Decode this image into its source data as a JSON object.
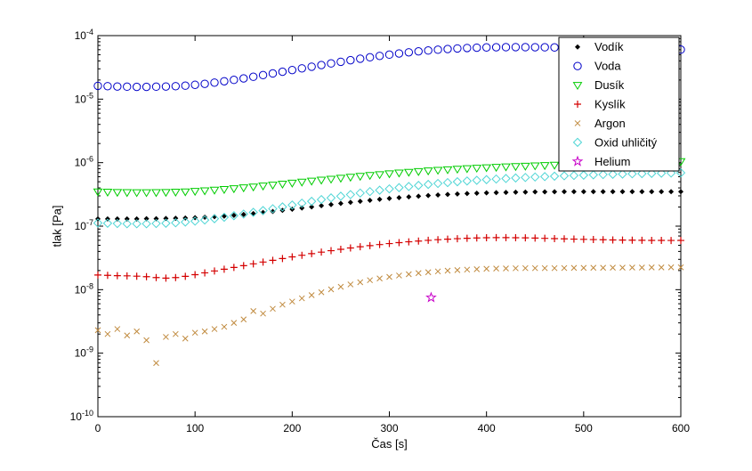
{
  "chart_data": {
    "type": "scatter",
    "title": "",
    "xlabel": "Čas [s]",
    "ylabel": "tlak [Pa]",
    "xlim": [
      0,
      600
    ],
    "ylim_log10": [
      -10,
      -4
    ],
    "x_ticks": [
      0,
      100,
      200,
      300,
      400,
      500,
      600
    ],
    "y_tick_base": "10",
    "y_tick_exponents": [
      -10,
      -9,
      -8,
      -7,
      -6,
      -5,
      -4
    ],
    "grid": false,
    "legend_position": "top-right",
    "x": [
      0,
      10,
      20,
      30,
      40,
      50,
      60,
      70,
      80,
      90,
      100,
      110,
      120,
      130,
      140,
      150,
      160,
      170,
      180,
      190,
      200,
      210,
      220,
      230,
      240,
      250,
      260,
      270,
      280,
      290,
      300,
      310,
      320,
      330,
      340,
      350,
      360,
      370,
      380,
      390,
      400,
      410,
      420,
      430,
      440,
      450,
      460,
      470,
      480,
      490,
      500,
      510,
      520,
      530,
      540,
      550,
      560,
      570,
      580,
      590,
      600
    ],
    "series": [
      {
        "id": "vodik",
        "label": "Vodík",
        "marker": "diamond-filled",
        "color": "#000000",
        "scale": 1e-07,
        "values": [
          1.3,
          1.3,
          1.3,
          1.3,
          1.3,
          1.31,
          1.31,
          1.32,
          1.33,
          1.34,
          1.36,
          1.38,
          1.41,
          1.44,
          1.48,
          1.53,
          1.58,
          1.64,
          1.7,
          1.77,
          1.85,
          1.93,
          2.01,
          2.1,
          2.19,
          2.28,
          2.37,
          2.46,
          2.55,
          2.64,
          2.73,
          2.81,
          2.89,
          2.96,
          3.03,
          3.1,
          3.16,
          3.21,
          3.26,
          3.3,
          3.34,
          3.37,
          3.4,
          3.42,
          3.44,
          3.46,
          3.47,
          3.48,
          3.49,
          3.5,
          3.5,
          3.5,
          3.5,
          3.5,
          3.5,
          3.5,
          3.5,
          3.5,
          3.5,
          3.5,
          3.5
        ]
      },
      {
        "id": "voda",
        "label": "Voda",
        "marker": "circle",
        "color": "#0000c8",
        "scale": 1e-05,
        "values": [
          1.62,
          1.6,
          1.58,
          1.57,
          1.56,
          1.56,
          1.57,
          1.58,
          1.6,
          1.63,
          1.68,
          1.74,
          1.82,
          1.91,
          2.01,
          2.12,
          2.25,
          2.39,
          2.54,
          2.7,
          2.87,
          3.05,
          3.24,
          3.44,
          3.65,
          3.87,
          4.1,
          4.33,
          4.56,
          4.79,
          5.02,
          5.24,
          5.45,
          5.65,
          5.83,
          6.0,
          6.15,
          6.28,
          6.38,
          6.46,
          6.52,
          6.56,
          6.58,
          6.59,
          6.58,
          6.57,
          6.55,
          6.52,
          6.49,
          6.45,
          6.41,
          6.37,
          6.33,
          6.29,
          6.25,
          6.21,
          6.17,
          6.13,
          6.09,
          6.05,
          6.02
        ]
      },
      {
        "id": "dusik",
        "label": "Dusík",
        "marker": "triangle-down",
        "color": "#00cc00",
        "scale": 1e-07,
        "values": [
          3.5,
          3.46,
          3.43,
          3.41,
          3.4,
          3.4,
          3.41,
          3.43,
          3.46,
          3.5,
          3.56,
          3.63,
          3.72,
          3.82,
          3.93,
          4.05,
          4.18,
          4.32,
          4.47,
          4.63,
          4.8,
          4.98,
          5.16,
          5.35,
          5.54,
          5.74,
          5.94,
          6.14,
          6.34,
          6.54,
          6.74,
          6.93,
          7.12,
          7.3,
          7.48,
          7.65,
          7.81,
          7.97,
          8.12,
          8.26,
          8.4,
          8.53,
          8.65,
          8.77,
          8.88,
          8.99,
          9.09,
          9.19,
          9.29,
          9.38,
          9.47,
          9.56,
          9.65,
          9.74,
          9.83,
          9.92,
          10.0,
          10.1,
          10.2,
          10.3,
          10.45
        ]
      },
      {
        "id": "kyslik",
        "label": "Kyslík",
        "marker": "plus",
        "color": "#d40000",
        "scale": 1e-08,
        "values": [
          1.7,
          1.68,
          1.66,
          1.65,
          1.63,
          1.6,
          1.55,
          1.52,
          1.55,
          1.62,
          1.72,
          1.84,
          1.97,
          2.1,
          2.24,
          2.39,
          2.55,
          2.72,
          2.9,
          3.09,
          3.28,
          3.48,
          3.69,
          3.9,
          4.11,
          4.32,
          4.53,
          4.74,
          4.94,
          5.13,
          5.32,
          5.5,
          5.67,
          5.83,
          5.98,
          6.12,
          6.24,
          6.35,
          6.44,
          6.52,
          6.57,
          6.6,
          6.6,
          6.58,
          6.54,
          6.49,
          6.43,
          6.37,
          6.31,
          6.25,
          6.2,
          6.15,
          6.11,
          6.07,
          6.04,
          6.01,
          5.99,
          5.97,
          5.96,
          5.95,
          5.95
        ]
      },
      {
        "id": "argon",
        "label": "Argon",
        "marker": "x",
        "color": "#c08a3e",
        "scale": 1e-09,
        "values": [
          2.3,
          2.0,
          2.4,
          1.9,
          2.2,
          1.6,
          0.7,
          1.8,
          2.0,
          1.7,
          2.1,
          2.2,
          2.4,
          2.6,
          3.0,
          3.4,
          4.6,
          4.2,
          5.0,
          5.8,
          6.5,
          7.3,
          8.2,
          9.1,
          10.1,
          11.1,
          12.1,
          13.1,
          14.1,
          15.0,
          15.9,
          16.7,
          17.5,
          18.2,
          18.8,
          19.4,
          19.9,
          20.3,
          20.7,
          21.0,
          21.3,
          21.5,
          21.6,
          21.7,
          21.8,
          21.8,
          21.8,
          21.8,
          21.9,
          22.0,
          22.0,
          22.1,
          22.1,
          22.2,
          22.2,
          22.3,
          22.3,
          22.4,
          22.4,
          22.5,
          22.5
        ]
      },
      {
        "id": "oxid-uhlicity",
        "label": "Oxid uhličitý",
        "marker": "diamond",
        "color": "#4fd5d5",
        "scale": 1e-07,
        "values": [
          1.12,
          1.11,
          1.1,
          1.09,
          1.09,
          1.09,
          1.1,
          1.11,
          1.13,
          1.16,
          1.2,
          1.25,
          1.31,
          1.38,
          1.46,
          1.55,
          1.65,
          1.76,
          1.88,
          2.01,
          2.15,
          2.3,
          2.46,
          2.62,
          2.79,
          2.96,
          3.14,
          3.32,
          3.5,
          3.68,
          3.86,
          4.04,
          4.21,
          4.38,
          4.54,
          4.7,
          4.85,
          5.0,
          5.14,
          5.27,
          5.4,
          5.52,
          5.63,
          5.74,
          5.84,
          5.94,
          6.03,
          6.12,
          6.2,
          6.28,
          6.35,
          6.42,
          6.49,
          6.55,
          6.61,
          6.67,
          6.72,
          6.77,
          6.82,
          6.87,
          6.92
        ]
      },
      {
        "id": "helium",
        "label": "Helium",
        "marker": "pentagram",
        "color": "#c800c8",
        "scale": 1e-09,
        "x": [
          343
        ],
        "values": [
          7.5
        ]
      }
    ]
  }
}
